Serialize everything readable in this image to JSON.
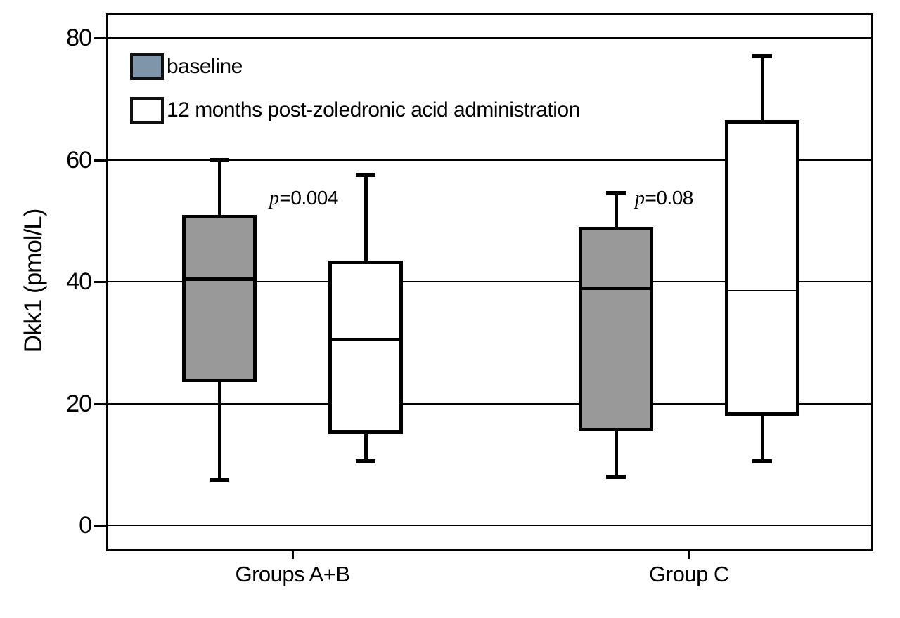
{
  "figure": {
    "background": "#ffffff",
    "frame_color": "#000000"
  },
  "chart_data": {
    "type": "boxplot",
    "title": "",
    "xlabel": "",
    "ylabel": "Dkk1 (pmol/L)",
    "yticks": [
      0,
      20,
      40,
      60,
      80
    ],
    "ylim": [
      -4,
      84
    ],
    "grid": "horizontal",
    "categories": [
      "Groups A+B",
      "Group C"
    ],
    "legend_position": "top-left-inside",
    "legend": [
      {
        "label": "baseline",
        "fill": "#7e96aa",
        "border": "#111111"
      },
      {
        "label": "12 months post-zoledronic acid administration",
        "fill": "#ffffff",
        "border": "#111111"
      }
    ],
    "series": [
      {
        "name": "baseline",
        "fill": "#999999",
        "boxes": [
          {
            "category": "Groups A+B",
            "whisker_low": 7.5,
            "q1": 23.5,
            "median": 40.5,
            "q3": 51,
            "whisker_high": 60
          },
          {
            "category": "Group C",
            "whisker_low": 8,
            "q1": 15.5,
            "median": 39,
            "q3": 49,
            "whisker_high": 54.5
          }
        ]
      },
      {
        "name": "12 months post-zoledronic acid administration",
        "fill": "#ffffff",
        "boxes": [
          {
            "category": "Groups A+B",
            "whisker_low": 10.5,
            "q1": 15,
            "median": 30.5,
            "q3": 43.5,
            "whisker_high": 57.5
          },
          {
            "category": "Group C",
            "whisker_low": 10.5,
            "q1": 18,
            "median": 38.5,
            "q3": 66.5,
            "whisker_high": 77,
            "median_thin": true
          }
        ]
      }
    ],
    "annotations": [
      {
        "text": "p=0.004",
        "category": "Groups A+B"
      },
      {
        "text": "p=0.08",
        "category": "Group C"
      }
    ]
  }
}
